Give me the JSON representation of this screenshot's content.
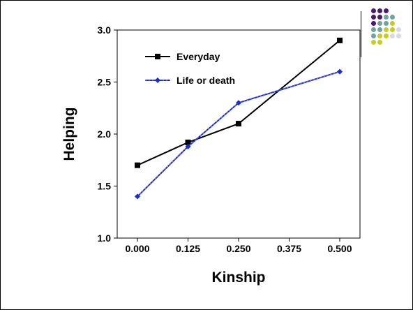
{
  "chart_data": {
    "type": "line",
    "xlabel": "Kinship",
    "ylabel": "Helping",
    "x": [
      0.0,
      0.125,
      0.25,
      0.375,
      0.5
    ],
    "xticklabels": [
      "0.000",
      "0.125",
      "0.250",
      "0.375",
      "0.500"
    ],
    "yticks": [
      1.0,
      1.5,
      2.0,
      2.5,
      3.0
    ],
    "yticklabels": [
      "1.0",
      "1.5",
      "2.0",
      "2.5",
      "3.0"
    ],
    "xlim": [
      -0.05,
      0.55
    ],
    "ylim": [
      1.0,
      3.0
    ],
    "grid": false,
    "legend_position": "top-left",
    "series": [
      {
        "name": "Everyday",
        "color": "#000000",
        "marker": "square",
        "x": [
          0.0,
          0.125,
          0.25,
          0.5
        ],
        "values": [
          1.7,
          1.92,
          2.1,
          2.9
        ]
      },
      {
        "name": "Life or death",
        "color": "#1a2ad6",
        "marker": "diamond",
        "x": [
          0.0,
          0.125,
          0.25,
          0.5
        ],
        "values": [
          1.4,
          1.88,
          2.3,
          2.6
        ]
      }
    ]
  },
  "decoration": {
    "dot_colors": [
      "#4b1a6e",
      "#6ea3a0",
      "#c8cc1e",
      "#d8d8e8"
    ]
  }
}
